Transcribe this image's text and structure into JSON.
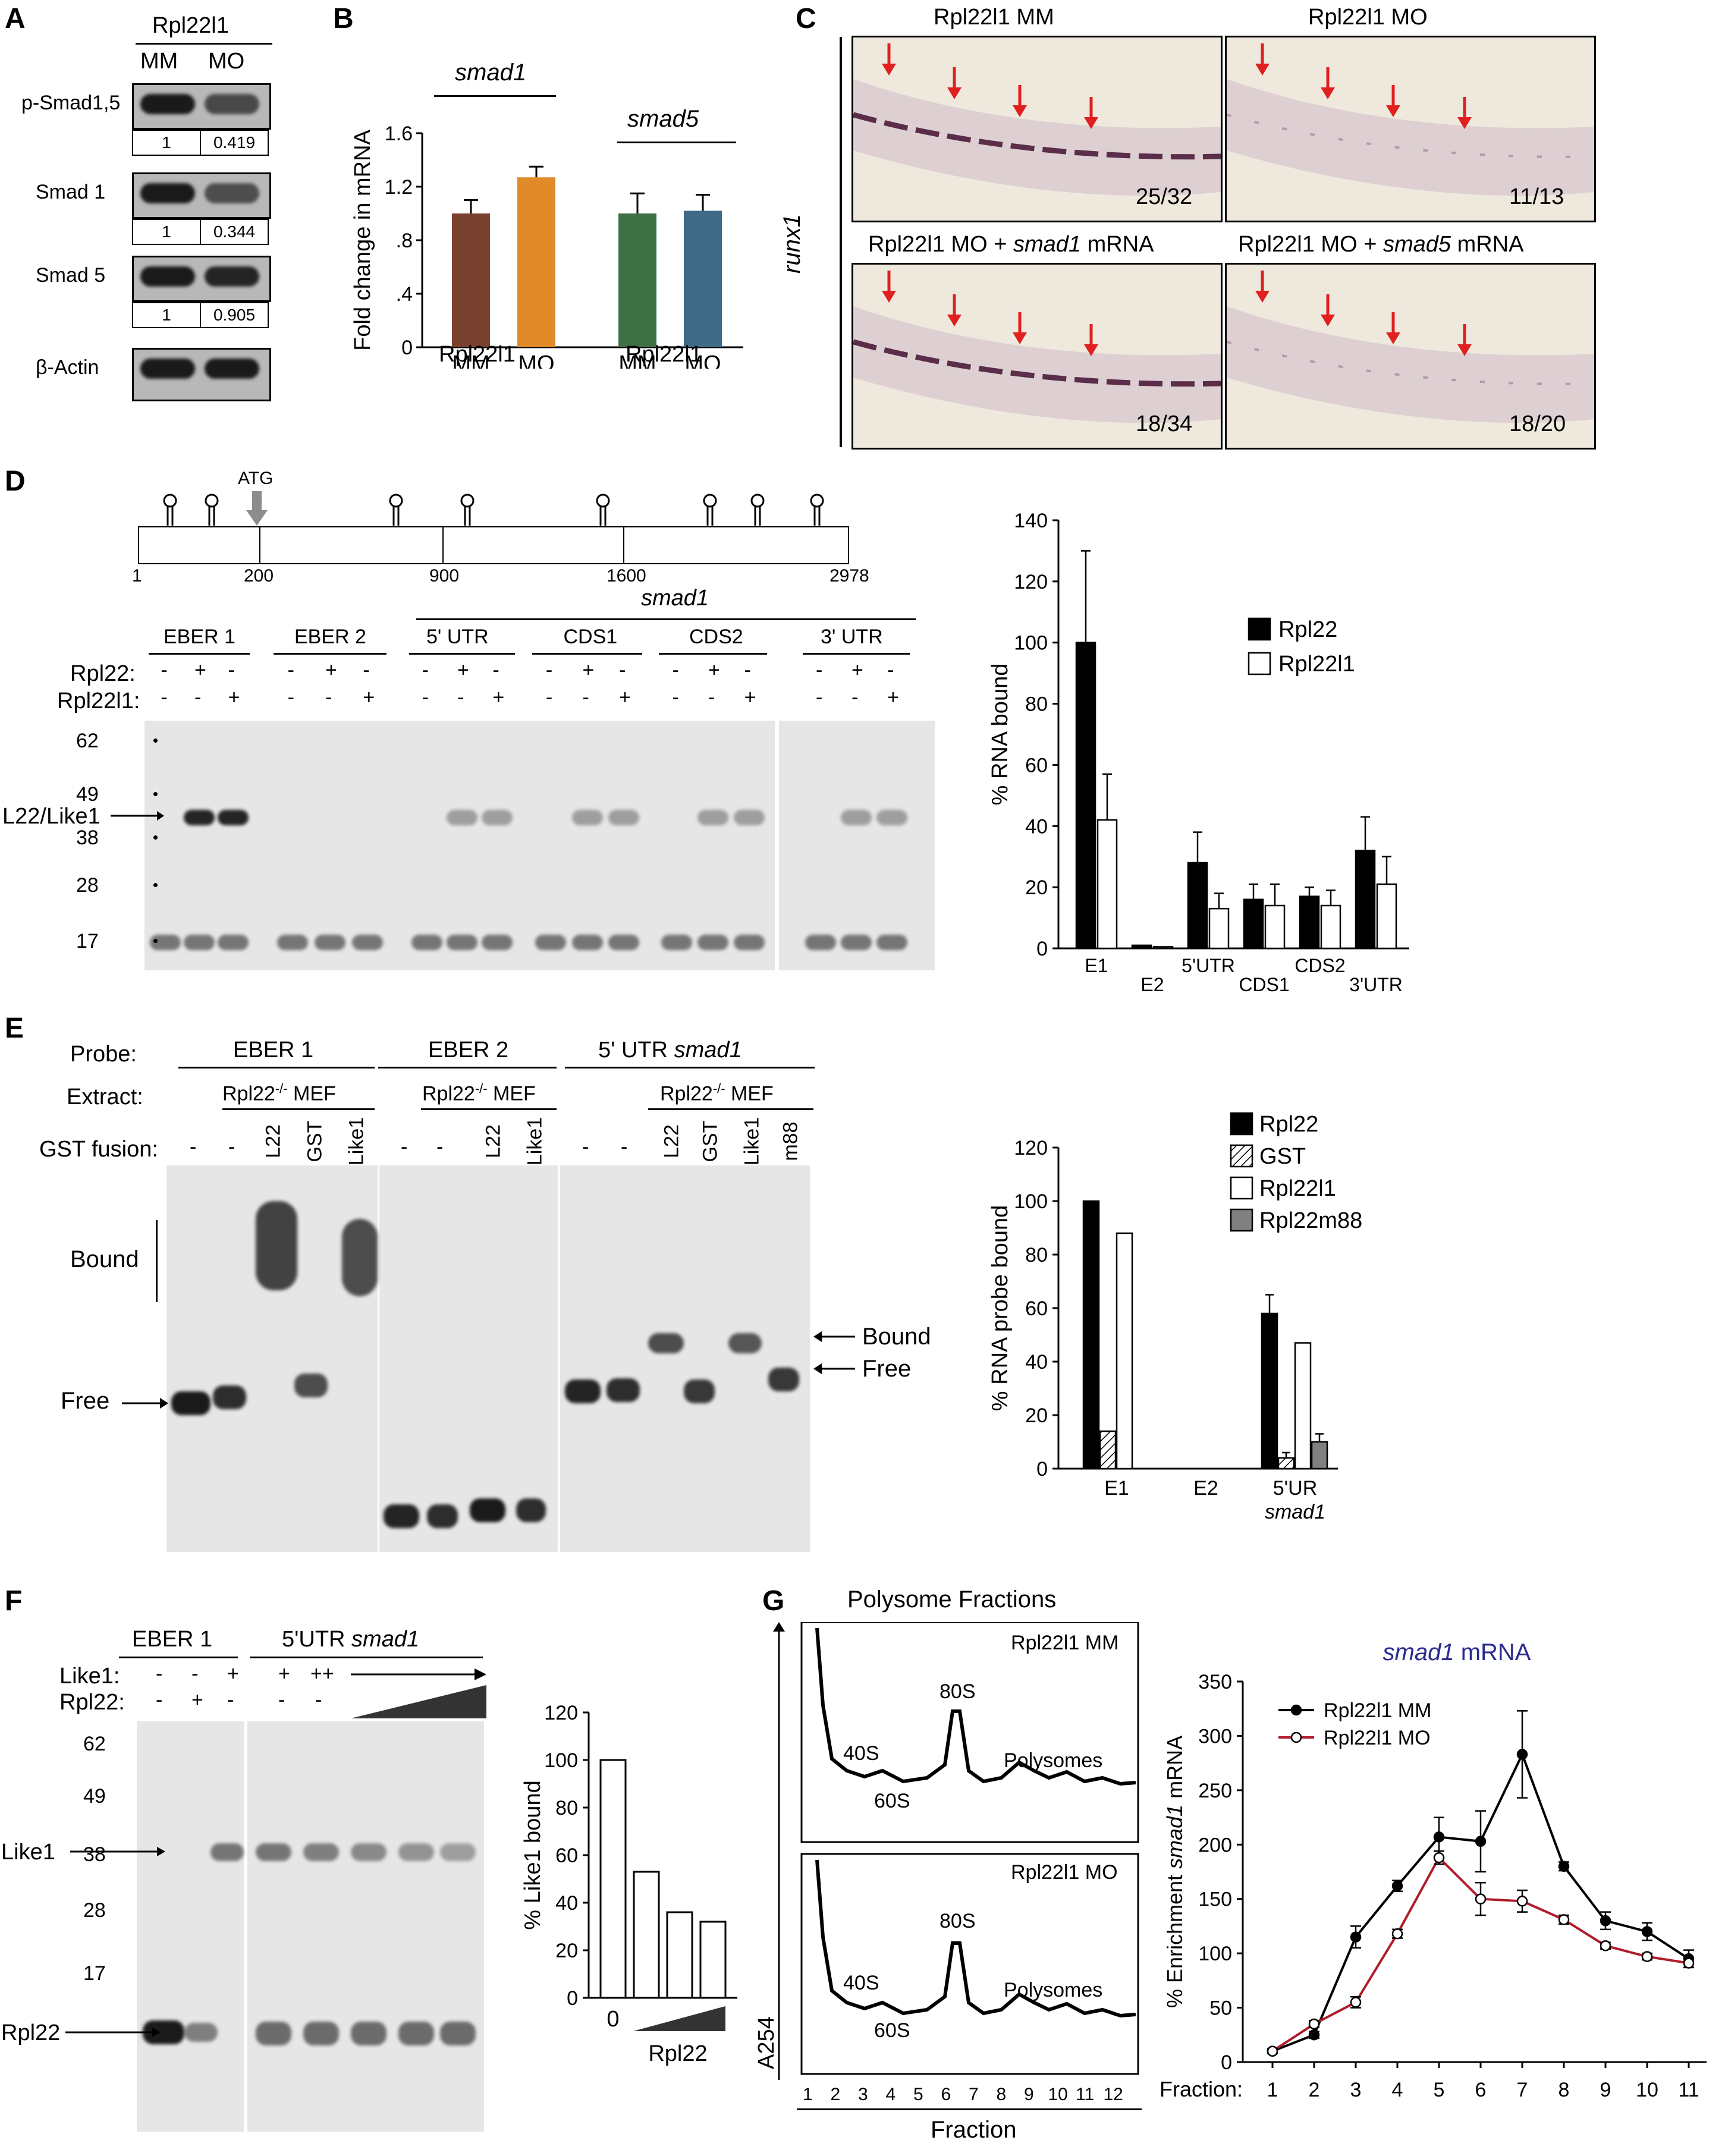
{
  "panels": {
    "A": {
      "label": "A",
      "header": "Rpl22l1",
      "columns": [
        "MM",
        "MO"
      ],
      "rows": [
        {
          "name": "p-Smad1,5",
          "quant": [
            "1",
            "0.419"
          ],
          "intensity": [
            1.0,
            0.55
          ]
        },
        {
          "name": "Smad 1",
          "quant": [
            "1",
            "0.344"
          ],
          "intensity": [
            1.0,
            0.5
          ]
        },
        {
          "name": "Smad 5",
          "quant": [
            "1",
            "0.905"
          ],
          "intensity": [
            1.0,
            0.9
          ]
        },
        {
          "name": "β-Actin",
          "quant": null,
          "intensity": [
            1.0,
            1.0
          ]
        }
      ]
    },
    "B": {
      "label": "B",
      "group_titles": [
        "smad1",
        "smad5"
      ],
      "group_sublabel": "Rpl22l1"
    },
    "C": {
      "label": "C",
      "side_label": "runx1",
      "images": [
        {
          "title": "Rpl22l1 MM",
          "count": "25/32",
          "signal": "strong"
        },
        {
          "title": "Rpl22l1 MO",
          "count": "11/13",
          "signal": "weak"
        },
        {
          "title_prefix": "Rpl22l1 MO + ",
          "title_gene": "smad1",
          "title_suffix": " mRNA",
          "count": "18/34",
          "signal": "strong"
        },
        {
          "title_prefix": "Rpl22l1 MO + ",
          "title_gene": "smad5",
          "title_suffix": " mRNA",
          "count": "18/20",
          "signal": "weak"
        }
      ]
    },
    "D": {
      "label": "D",
      "atg_label": "ATG",
      "domains": [
        {
          "name": "5' UTR",
          "color": "#d42e1e"
        },
        {
          "name": "CDS1",
          "color": "#2a1cf0"
        },
        {
          "name": "CDS2",
          "color": "#2e7a22"
        },
        {
          "name": "3'UTR",
          "color": "#e02a78"
        }
      ],
      "positions": [
        "1",
        "200",
        "900",
        "1600",
        "2978"
      ],
      "gene_label": "smad1",
      "probes": [
        "EBER 1",
        "EBER 2",
        "5' UTR",
        "CDS1",
        "CDS2",
        "3' UTR"
      ],
      "row_labels": [
        "Rpl22:",
        "Rpl22l1:"
      ],
      "signs": {
        "rpl22": [
          "-",
          "+",
          "-"
        ],
        "rpl22l1": [
          "-",
          "-",
          "+"
        ]
      },
      "markers": [
        "62",
        "49",
        "38",
        "28",
        "17"
      ],
      "band_label": "L22/Like1"
    },
    "E": {
      "label": "E",
      "row_labels": [
        "Probe:",
        "Extract:",
        "GST fusion:"
      ],
      "probes": [
        "EBER 1",
        "EBER 2"
      ],
      "probe3_prefix": "5' UTR ",
      "probe3_gene": "smad1",
      "extract": "Rpl22",
      "extract_sup": "-/-",
      "extract_suffix": " MEF",
      "fusion_lanes_1": [
        "-",
        "-",
        "L22",
        "GST",
        "Like1"
      ],
      "fusion_lanes_2": [
        "-",
        "-",
        "L22",
        "Like1"
      ],
      "fusion_lanes_3": [
        "-",
        "-",
        "L22",
        "GST",
        "Like1",
        "m88"
      ],
      "bound_label": "Bound",
      "free_label": "Free"
    },
    "F": {
      "label": "F",
      "probes": [
        "EBER 1"
      ],
      "probe2_prefix": "5'UTR ",
      "probe2_gene": "smad1",
      "row_labels": [
        "Like1:",
        "Rpl22:"
      ],
      "like1_signs": [
        "-",
        "-",
        "+",
        "+",
        "++"
      ],
      "rpl22_signs": [
        "-",
        "+",
        "-",
        "-",
        "-"
      ],
      "markers": [
        "62",
        "49",
        "38",
        "28",
        "17"
      ],
      "band_labels": [
        "Like1",
        "Rpl22"
      ]
    },
    "G": {
      "label": "G",
      "title": "Polysome  Fractions",
      "profiles": [
        {
          "title": "Rpl22l1 MM",
          "peaks": [
            "40S",
            "60S",
            "80S",
            "Polysomes"
          ]
        },
        {
          "title": "Rpl22l1 MO",
          "peaks": [
            "40S",
            "60S",
            "80S",
            "Polysomes"
          ]
        }
      ],
      "yaxis": "A254",
      "fractions": [
        "1",
        "2",
        "3",
        "4",
        "5",
        "6",
        "7",
        "8",
        "9",
        "10",
        "11",
        "12"
      ],
      "xaxis": "Fraction"
    }
  },
  "chart_data": [
    {
      "type": "bar",
      "panel": "B",
      "categories": [
        "MM",
        "MO",
        "MM",
        "MO"
      ],
      "values": [
        1.0,
        1.27,
        1.0,
        1.02
      ],
      "errors": [
        0.1,
        0.08,
        0.15,
        0.12
      ],
      "colors": [
        "#7a4030",
        "#e08a2a",
        "#3f7045",
        "#3f6a88"
      ],
      "ylabel": "Fold change in mRNA",
      "ylim": [
        0,
        1.6
      ],
      "yticks": [
        "0",
        ".4",
        ".8",
        "1.2",
        "1.6"
      ]
    },
    {
      "type": "bar",
      "panel": "D",
      "categories": [
        "E1",
        "E2",
        "5'UTR",
        "CDS1",
        "CDS2",
        "3'UTR"
      ],
      "series": [
        {
          "name": "Rpl22",
          "values": [
            100,
            1,
            28,
            16,
            17,
            32
          ],
          "errors": [
            30,
            0,
            10,
            5,
            3,
            11
          ],
          "color": "#000000"
        },
        {
          "name": "Rpl22l1",
          "values": [
            42,
            0.5,
            13,
            14,
            14,
            21
          ],
          "errors": [
            15,
            0,
            5,
            7,
            5,
            9
          ],
          "color": "#ffffff"
        }
      ],
      "ylabel": "% RNA bound",
      "ylim": [
        0,
        140
      ],
      "yticks": [
        "0",
        "20",
        "40",
        "60",
        "80",
        "100",
        "120",
        "140"
      ]
    },
    {
      "type": "bar",
      "panel": "E",
      "categories": [
        "E1",
        "E2",
        "5'UR"
      ],
      "category_sublabels": [
        "",
        "",
        "smad1"
      ],
      "series": [
        {
          "name": "Rpl22",
          "values": [
            100,
            0,
            58
          ],
          "errors": [
            0,
            0,
            7
          ],
          "color": "#000000",
          "hatch": false
        },
        {
          "name": "GST",
          "values": [
            14,
            0,
            4
          ],
          "errors": [
            0,
            0,
            2
          ],
          "color": "#ffffff",
          "hatch": true
        },
        {
          "name": "Rpl22l1",
          "values": [
            88,
            0,
            47
          ],
          "errors": [
            0,
            0,
            0
          ],
          "color": "#ffffff",
          "hatch": false
        },
        {
          "name": "Rpl22m88",
          "values": [
            0,
            0,
            10
          ],
          "errors": [
            0,
            0,
            3
          ],
          "color": "#808080",
          "hatch": false
        }
      ],
      "ylabel": "% RNA probe bound",
      "ylim": [
        0,
        120
      ],
      "yticks": [
        "0",
        "20",
        "40",
        "60",
        "80",
        "100",
        "120"
      ]
    },
    {
      "type": "bar",
      "panel": "F",
      "categories": [
        "0",
        "",
        "",
        ""
      ],
      "values": [
        100,
        53,
        36,
        32
      ],
      "ylabel": "% Like1 bound",
      "xlabel": "Rpl22",
      "ylim": [
        0,
        120
      ],
      "yticks": [
        "0",
        "20",
        "40",
        "60",
        "80",
        "100",
        "120"
      ]
    },
    {
      "type": "line",
      "panel": "G",
      "title": "smad1 mRNA",
      "title_color": "#2a2a90",
      "x": [
        1,
        2,
        3,
        4,
        5,
        6,
        7,
        8,
        9,
        10,
        11
      ],
      "x_prefix": "Fraction:",
      "series": [
        {
          "name": "Rpl22l1 MM",
          "values": [
            10,
            25,
            115,
            162,
            207,
            203,
            283,
            180,
            130,
            120,
            95
          ],
          "errors": [
            2,
            3,
            10,
            5,
            18,
            28,
            40,
            4,
            8,
            8,
            8
          ],
          "color": "#000000",
          "marker": "filled"
        },
        {
          "name": "Rpl22l1 MO",
          "values": [
            10,
            35,
            55,
            118,
            188,
            150,
            148,
            131,
            107,
            97,
            91
          ],
          "errors": [
            2,
            3,
            5,
            4,
            6,
            15,
            10,
            4,
            3,
            3,
            4
          ],
          "color": "#b01c2a",
          "marker": "open"
        }
      ],
      "ylabel": "% Enrichment smad1 mRNA",
      "ylabel_prefix": "% Enrichment ",
      "ylabel_gene": "smad1",
      "ylabel_suffix": " mRNA",
      "ylim": [
        0,
        350
      ],
      "yticks": [
        "0",
        "50",
        "100",
        "150",
        "200",
        "250",
        "300",
        "350"
      ]
    }
  ]
}
